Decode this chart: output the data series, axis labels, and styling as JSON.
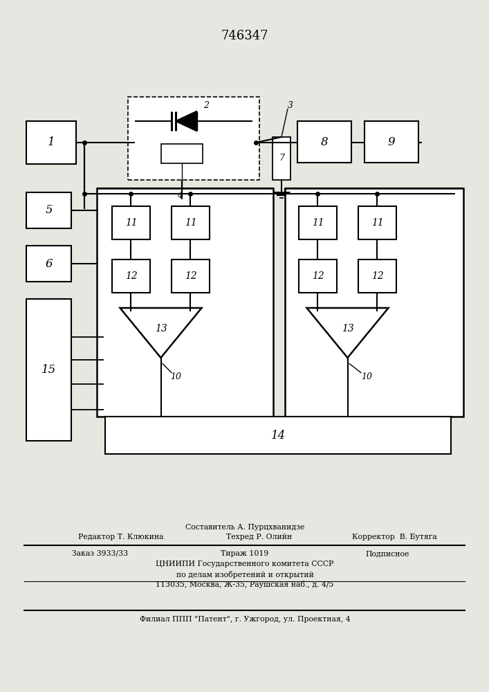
{
  "title": "746347",
  "bg_color": "#e8e6e0",
  "line_color": "#000000",
  "footer": {
    "line1_composer": "Составитель А. Пурцхванидзе",
    "line2_editor": "Редактор Т. Клюкина",
    "line2_techred": "Техред Р. Олийн",
    "line2_corrector": "Корректор  В. Бутяга",
    "line3_order": "Заказ 3933/33",
    "line3_tirazh": "Тираж 1019",
    "line3_podp": "Подписное",
    "line4": "ЦНИИПИ Государственного комитета СССР",
    "line5": "по делам изобретений и открытий",
    "line6": "113035, Москва, Ж-35, Раушская наб., д. 4/5",
    "line7": "Филиал ППП \"Патент\", г. Ужгород, ул. Проектная, 4"
  }
}
